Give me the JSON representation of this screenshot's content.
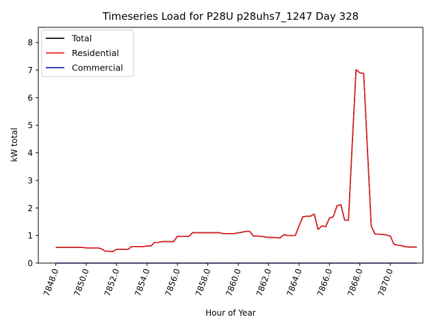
{
  "chart_data": {
    "type": "line",
    "title": "Timeseries Load for P28U p28uhs7_1247  Day 328",
    "xlabel": "Hour of Year",
    "ylabel": "kW total",
    "xlim": [
      7846.85,
      7872.15
    ],
    "ylim": [
      0,
      8.55
    ],
    "x_ticks": [
      7848,
      7850,
      7852,
      7854,
      7856,
      7858,
      7860,
      7862,
      7864,
      7866,
      7868,
      7870
    ],
    "x_tick_labels": [
      "7848.0",
      "7850.0",
      "7852.0",
      "7854.0",
      "7856.0",
      "7858.0",
      "7860.0",
      "7862.0",
      "7864.0",
      "7866.0",
      "7868.0",
      "7870.0"
    ],
    "y_ticks": [
      0,
      1,
      2,
      3,
      4,
      5,
      6,
      7,
      8
    ],
    "y_tick_labels": [
      "0",
      "1",
      "2",
      "3",
      "4",
      "5",
      "6",
      "7",
      "8"
    ],
    "grid": false,
    "legend_position": "upper-left",
    "x": [
      7848.0,
      7848.25,
      7848.5,
      7848.75,
      7849.0,
      7849.25,
      7849.5,
      7849.75,
      7850.0,
      7850.25,
      7850.5,
      7850.75,
      7851.0,
      7851.25,
      7851.5,
      7851.75,
      7852.0,
      7852.25,
      7852.5,
      7852.75,
      7853.0,
      7853.25,
      7853.5,
      7853.75,
      7854.0,
      7854.25,
      7854.5,
      7854.75,
      7855.0,
      7855.25,
      7855.5,
      7855.75,
      7856.0,
      7856.25,
      7856.5,
      7856.75,
      7857.0,
      7857.25,
      7857.5,
      7857.75,
      7858.0,
      7858.25,
      7858.5,
      7858.75,
      7859.0,
      7859.25,
      7859.5,
      7859.75,
      7860.0,
      7860.25,
      7860.5,
      7860.75,
      7861.0,
      7861.25,
      7861.5,
      7861.75,
      7862.0,
      7862.25,
      7862.5,
      7862.75,
      7863.0,
      7863.25,
      7863.5,
      7863.75,
      7864.0,
      7864.25,
      7864.5,
      7864.75,
      7865.0,
      7865.25,
      7865.5,
      7865.75,
      7866.0,
      7866.25,
      7866.5,
      7866.75,
      7867.0,
      7867.25,
      7867.5,
      7867.75,
      7868.0,
      7868.25,
      7868.5,
      7868.75,
      7869.0,
      7869.25,
      7869.5,
      7869.75,
      7870.0,
      7870.25,
      7870.5,
      7870.75,
      7871.0,
      7871.25,
      7871.5,
      7871.75
    ],
    "series": [
      {
        "name": "Total",
        "color": "#000000",
        "values": [
          0.57,
          0.57,
          0.57,
          0.57,
          0.57,
          0.57,
          0.57,
          0.57,
          0.55,
          0.55,
          0.55,
          0.55,
          0.52,
          0.43,
          0.43,
          0.42,
          0.5,
          0.5,
          0.5,
          0.5,
          0.6,
          0.6,
          0.6,
          0.6,
          0.62,
          0.62,
          0.75,
          0.75,
          0.78,
          0.78,
          0.78,
          0.78,
          0.97,
          0.97,
          0.97,
          0.97,
          1.1,
          1.1,
          1.1,
          1.1,
          1.1,
          1.1,
          1.1,
          1.1,
          1.07,
          1.07,
          1.07,
          1.07,
          1.1,
          1.12,
          1.15,
          1.15,
          0.98,
          0.98,
          0.97,
          0.95,
          0.93,
          0.93,
          0.92,
          0.91,
          1.03,
          1.0,
          1.0,
          1.0,
          1.35,
          1.68,
          1.7,
          1.7,
          1.78,
          1.22,
          1.35,
          1.32,
          1.63,
          1.68,
          2.08,
          2.12,
          1.56,
          1.55,
          4.33,
          7.02,
          6.9,
          6.88,
          4.12,
          1.34,
          1.05,
          1.05,
          1.04,
          1.02,
          0.98,
          0.68,
          0.65,
          0.63,
          0.59,
          0.58,
          0.58,
          0.58
        ]
      },
      {
        "name": "Residential",
        "color": "#e31a1c",
        "values": [
          0.57,
          0.57,
          0.57,
          0.57,
          0.57,
          0.57,
          0.57,
          0.57,
          0.55,
          0.55,
          0.55,
          0.55,
          0.52,
          0.43,
          0.43,
          0.42,
          0.5,
          0.5,
          0.5,
          0.5,
          0.6,
          0.6,
          0.6,
          0.6,
          0.62,
          0.62,
          0.75,
          0.75,
          0.78,
          0.78,
          0.78,
          0.78,
          0.97,
          0.97,
          0.97,
          0.97,
          1.1,
          1.1,
          1.1,
          1.1,
          1.1,
          1.1,
          1.1,
          1.1,
          1.07,
          1.07,
          1.07,
          1.07,
          1.1,
          1.12,
          1.15,
          1.15,
          0.98,
          0.98,
          0.97,
          0.95,
          0.93,
          0.93,
          0.92,
          0.91,
          1.03,
          1.0,
          1.0,
          1.0,
          1.35,
          1.68,
          1.7,
          1.7,
          1.78,
          1.22,
          1.35,
          1.32,
          1.63,
          1.68,
          2.08,
          2.12,
          1.56,
          1.55,
          4.33,
          7.02,
          6.9,
          6.88,
          4.12,
          1.34,
          1.05,
          1.05,
          1.04,
          1.02,
          0.98,
          0.68,
          0.65,
          0.63,
          0.59,
          0.58,
          0.58,
          0.58
        ]
      },
      {
        "name": "Commercial",
        "color": "#1f1fb4",
        "values": [
          0,
          0,
          0,
          0,
          0,
          0,
          0,
          0,
          0,
          0,
          0,
          0,
          0,
          0,
          0,
          0,
          0,
          0,
          0,
          0,
          0,
          0,
          0,
          0,
          0,
          0,
          0,
          0,
          0,
          0,
          0,
          0,
          0,
          0,
          0,
          0,
          0,
          0,
          0,
          0,
          0,
          0,
          0,
          0,
          0,
          0,
          0,
          0,
          0,
          0,
          0,
          0,
          0,
          0,
          0,
          0,
          0,
          0,
          0,
          0,
          0,
          0,
          0,
          0,
          0,
          0,
          0,
          0,
          0,
          0,
          0,
          0,
          0,
          0,
          0,
          0,
          0,
          0,
          0,
          0,
          0,
          0,
          0,
          0,
          0,
          0,
          0,
          0,
          0,
          0,
          0,
          0,
          0,
          0,
          0,
          0
        ]
      }
    ]
  }
}
